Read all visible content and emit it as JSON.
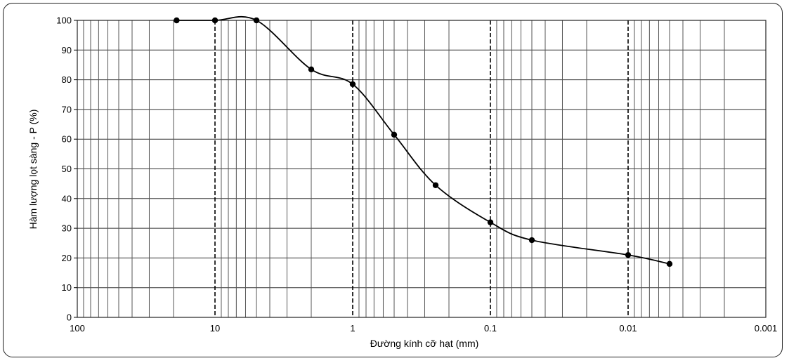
{
  "chart_data": {
    "type": "line",
    "title": "",
    "xlabel": "Đường kính cỡ hạt (mm)",
    "ylabel": "Hàm lượng lọt sàng - P (%)",
    "x_scale": "log",
    "x_reversed": true,
    "xlim": [
      100,
      0.001
    ],
    "ylim": [
      0,
      100
    ],
    "x_ticks": [
      "100",
      "10",
      "1",
      "0.1",
      "0.01",
      "0.001"
    ],
    "y_ticks": [
      "0",
      "10",
      "20",
      "30",
      "40",
      "50",
      "60",
      "70",
      "80",
      "90",
      "100"
    ],
    "grid": true,
    "series": [
      {
        "x": [
          19,
          10,
          5,
          2,
          1,
          0.5,
          0.25,
          0.1,
          0.05,
          0.01,
          0.005
        ],
        "y": [
          100,
          100,
          100,
          83.5,
          78.5,
          61.5,
          44.5,
          32,
          26,
          21,
          18
        ]
      }
    ]
  }
}
